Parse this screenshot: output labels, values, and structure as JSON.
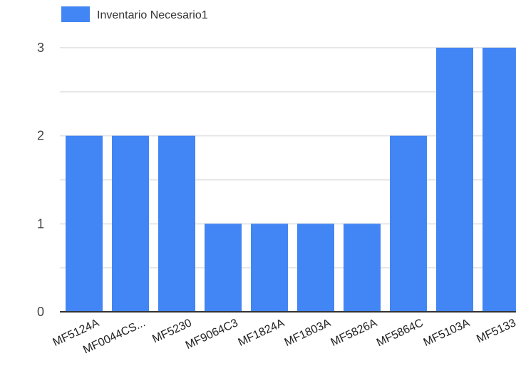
{
  "chart_data": {
    "type": "bar",
    "categories": [
      "MF5124A",
      "MF0044CS...",
      "MF5230",
      "MF9064C3",
      "MF1824A",
      "MF1803A",
      "MF5826A",
      "MF5864C",
      "MF5103A",
      "MF5133"
    ],
    "series": [
      {
        "name": "Inventario Necesario1",
        "values": [
          2,
          2,
          2,
          1,
          1,
          1,
          1,
          2,
          3,
          3
        ],
        "color": "#4285f4"
      }
    ],
    "yticks": [
      0,
      1,
      2,
      3
    ],
    "ylim": [
      0,
      3
    ],
    "grid": true,
    "legend_position": "top-left",
    "bar_color": "#4285f4",
    "grid_color": "#e6e6e6",
    "axis_color": "#333333"
  }
}
